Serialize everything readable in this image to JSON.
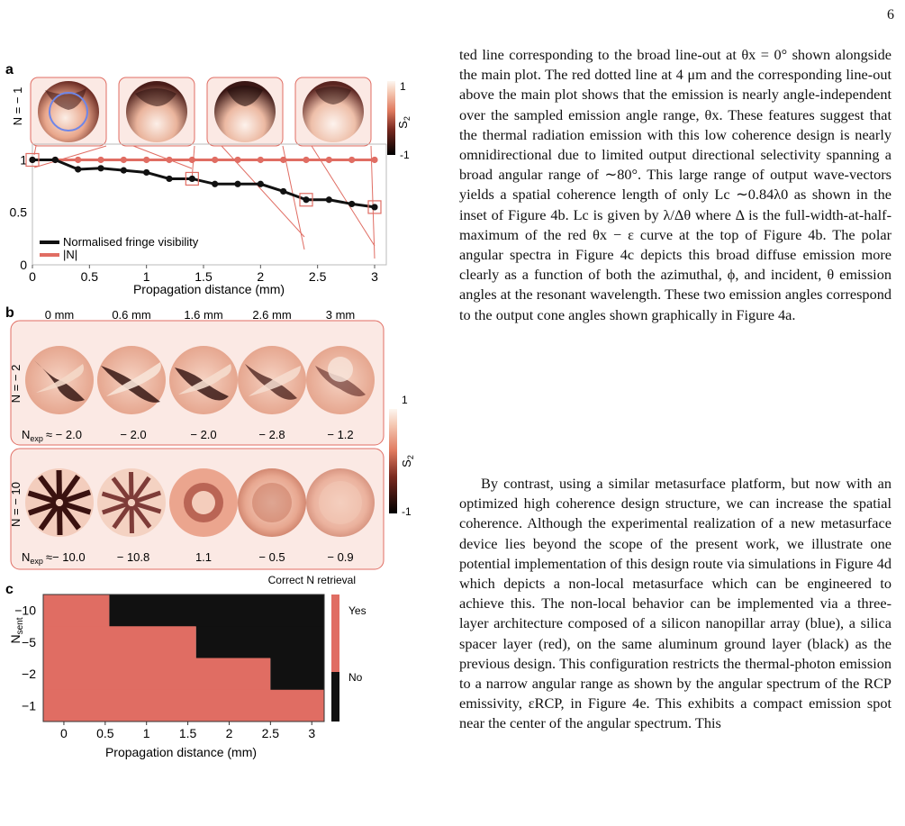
{
  "page_number": "6",
  "panel_a": {
    "label": "a",
    "row_label": "N = − 1",
    "colorbar_label": "S",
    "colorbar_sub": "2",
    "colorbar_max": "1",
    "colorbar_min": "-1",
    "legend": [
      "Normalised fringe visibility",
      "|N|"
    ],
    "xlabel": "Propagation distance (mm)",
    "xticks": [
      "0",
      "0.5",
      "1",
      "1.5",
      "2",
      "2.5",
      "3"
    ],
    "yticks": [
      "0",
      "0.5",
      "1"
    ]
  },
  "panel_b": {
    "label": "b",
    "distances": [
      "0 mm",
      "0.6 mm",
      "1.6 mm",
      "2.6 mm",
      "3 mm"
    ],
    "row1_label": "N = − 2",
    "row1_values": [
      "N",
      "exp",
      "≈ − 2.0",
      "− 2.0",
      "− 2.0",
      "− 2.8",
      "− 1.2"
    ],
    "row2_label": "N = − 10",
    "row2_values": [
      "N",
      "exp",
      "≈− 10.0",
      "− 10.8",
      "1.1",
      "− 0.5",
      "− 0.9"
    ],
    "colorbar_label": "S",
    "colorbar_sub": "2",
    "colorbar_max": "1",
    "colorbar_min": "-1"
  },
  "panel_c": {
    "label": "c",
    "title": "Correct N retrieval",
    "ylabel": "N",
    "ylabel_sub": "sent",
    "yticks": [
      "−10",
      "−5",
      "−2",
      "−1"
    ],
    "xticks": [
      "0",
      "0.5",
      "1",
      "1.5",
      "2",
      "2.5",
      "3"
    ],
    "xlabel": "Propagation distance (mm)",
    "legend_yes": "Yes",
    "legend_no": "No"
  },
  "colors": {
    "accent_red": "#e06d63",
    "panel_bg": "#fbe9e4",
    "dark": "#111111",
    "ring_blue": "#6f86e8"
  },
  "chart_data": [
    {
      "type": "line",
      "x": [
        0,
        0.2,
        0.4,
        0.6,
        0.8,
        1.0,
        1.2,
        1.4,
        1.6,
        1.8,
        2.0,
        2.2,
        2.4,
        2.6,
        2.8,
        3.0
      ],
      "series": [
        {
          "name": "Normalised fringe visibility",
          "values": [
            1.0,
            1.0,
            0.91,
            0.92,
            0.9,
            0.88,
            0.82,
            0.82,
            0.77,
            0.77,
            0.77,
            0.7,
            0.62,
            0.62,
            0.58,
            0.55
          ],
          "color": "#111111"
        },
        {
          "name": "|N|",
          "values": [
            1,
            1,
            1,
            1,
            1,
            1,
            1,
            1,
            1,
            1,
            1,
            1,
            1,
            1,
            1,
            1
          ],
          "color": "#e06d63"
        }
      ],
      "xlabel": "Propagation distance (mm)",
      "xlim": [
        0,
        3
      ],
      "ylim": [
        0,
        1.15
      ]
    },
    {
      "type": "heatmap",
      "title": "Correct N retrieval",
      "rows": [
        "−10",
        "−5",
        "−2",
        "−1"
      ],
      "columns": [
        0,
        0.5,
        1,
        1.5,
        2,
        2.5,
        3
      ],
      "correct_until_mm": [
        0.55,
        1.6,
        2.5,
        3.15
      ],
      "xlabel": "Propagation distance (mm)",
      "ylabel": "N sent"
    }
  ],
  "paragraph1": "ted line corresponding to the broad line-out at θx = 0° shown alongside the main plot. The red dotted line at 4 μm and the corresponding line-out above the main plot shows that the emission is nearly angle-independent over the sampled emission angle range, θx. These features suggest that the thermal radiation emission with this low coherence design is nearly omnidirectional due to limited output directional selectivity spanning a broad angular range of ∼80°. This large range of output wave-vectors yields a spatial coherence length of only Lc ∼0.84λ0 as shown in the inset of Figure 4b. Lc is given by λ/Δθ where Δ is the full-width-at-half-maximum of the red θx − ε curve at the top of Figure 4b. The polar angular spectra in Figure 4c depicts this broad diffuse emission more clearly as a function of both the azimuthal, ϕ, and incident, θ emission angles at the resonant wavelength. These two emission angles correspond to the output cone angles shown graphically in Figure 4a.",
  "paragraph2": "By contrast, using a similar metasurface platform, but now with an optimized high coherence design structure, we can increase the spatial coherence. Although the experimental realization of a new metasurface device lies beyond the scope of the present work, we illustrate one potential implementation of this design route via simulations in Figure 4d which depicts a non-local metasurface which can be engineered to achieve this. The non-local behavior can be implemented via a three-layer architecture composed of a silicon nanopillar array (blue), a silica spacer layer (red), on the same aluminum ground layer (black) as the previous design. This configuration restricts the thermal-photon emission to a narrow angular range as shown by the angular spectrum of the RCP emissivity, εRCP, in Figure 4e. This exhibits a compact emission spot near the center of the angular spectrum. This"
}
